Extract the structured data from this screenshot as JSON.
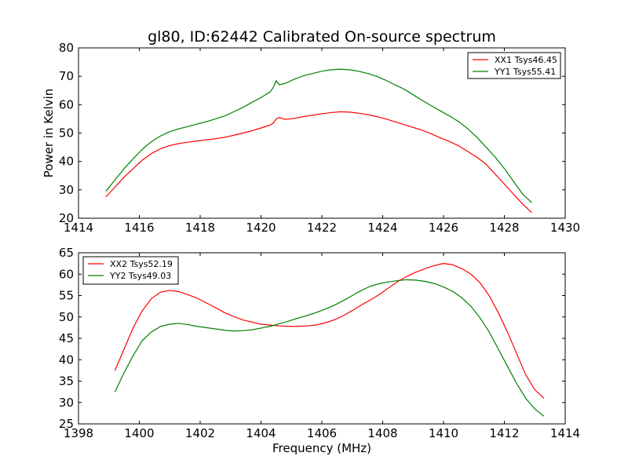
{
  "title": "gl80, ID:62442 Calibrated On-source spectrum",
  "chart_data": [
    {
      "type": "line",
      "ylabel": "Power in Kelvin",
      "xlabel": "",
      "xlim": [
        1414,
        1430
      ],
      "ylim": [
        20,
        80
      ],
      "xticks": [
        1414,
        1416,
        1418,
        1420,
        1422,
        1424,
        1426,
        1428,
        1430
      ],
      "yticks": [
        20,
        30,
        40,
        50,
        60,
        70,
        80
      ],
      "legend_position": "top-right",
      "series": [
        {
          "name": "XX1 Tsys46.45",
          "color": "#ff0000",
          "x": [
            1414.9,
            1415.2,
            1415.5,
            1415.8,
            1416.1,
            1416.4,
            1416.7,
            1417.0,
            1417.3,
            1417.6,
            1417.9,
            1418.2,
            1418.5,
            1418.8,
            1419.1,
            1419.4,
            1419.7,
            1420.0,
            1420.3,
            1420.4,
            1420.5,
            1420.6,
            1420.8,
            1421.1,
            1421.4,
            1421.7,
            1422.0,
            1422.3,
            1422.6,
            1422.9,
            1423.2,
            1423.5,
            1423.8,
            1424.1,
            1424.4,
            1424.7,
            1425.0,
            1425.3,
            1425.6,
            1425.9,
            1426.2,
            1426.5,
            1426.8,
            1427.1,
            1427.4,
            1427.7,
            1428.0,
            1428.3,
            1428.6,
            1428.9
          ],
          "y": [
            27.5,
            31.0,
            34.5,
            37.5,
            40.5,
            42.8,
            44.5,
            45.6,
            46.3,
            46.8,
            47.2,
            47.6,
            48.0,
            48.5,
            49.2,
            50.0,
            50.8,
            51.8,
            52.8,
            53.5,
            55.0,
            55.5,
            54.8,
            55.2,
            55.8,
            56.3,
            56.8,
            57.2,
            57.5,
            57.4,
            57.0,
            56.5,
            55.8,
            55.0,
            54.0,
            53.0,
            52.0,
            51.0,
            49.7,
            48.3,
            47.0,
            45.5,
            43.5,
            41.5,
            39.0,
            35.5,
            32.0,
            28.5,
            25.0,
            22.0
          ]
        },
        {
          "name": "YY1 Tsys55.41",
          "color": "#008000",
          "x": [
            1414.9,
            1415.2,
            1415.5,
            1415.8,
            1416.1,
            1416.4,
            1416.7,
            1417.0,
            1417.3,
            1417.6,
            1417.9,
            1418.2,
            1418.5,
            1418.8,
            1419.1,
            1419.4,
            1419.7,
            1420.0,
            1420.3,
            1420.4,
            1420.5,
            1420.6,
            1420.8,
            1421.1,
            1421.4,
            1421.7,
            1422.0,
            1422.3,
            1422.6,
            1422.9,
            1423.2,
            1423.5,
            1423.8,
            1424.1,
            1424.4,
            1424.7,
            1425.0,
            1425.3,
            1425.6,
            1425.9,
            1426.2,
            1426.5,
            1426.8,
            1427.1,
            1427.4,
            1427.7,
            1428.0,
            1428.3,
            1428.6,
            1428.9
          ],
          "y": [
            29.5,
            33.5,
            37.5,
            41.0,
            44.3,
            47.0,
            49.0,
            50.5,
            51.5,
            52.3,
            53.2,
            54.0,
            55.0,
            56.0,
            57.5,
            59.0,
            60.8,
            62.5,
            64.5,
            66.0,
            68.5,
            67.0,
            67.5,
            69.0,
            70.2,
            71.0,
            71.8,
            72.3,
            72.5,
            72.3,
            71.8,
            71.0,
            70.0,
            68.6,
            67.0,
            65.5,
            63.5,
            61.5,
            59.6,
            57.8,
            56.0,
            54.0,
            51.5,
            48.5,
            45.0,
            41.5,
            37.5,
            33.0,
            28.5,
            25.5
          ]
        }
      ]
    },
    {
      "type": "line",
      "ylabel": "",
      "xlabel": "Frequency (MHz)",
      "xlim": [
        1398,
        1414
      ],
      "ylim": [
        25,
        65
      ],
      "xticks": [
        1398,
        1400,
        1402,
        1404,
        1406,
        1408,
        1410,
        1412,
        1414
      ],
      "yticks": [
        25,
        30,
        35,
        40,
        45,
        50,
        55,
        60,
        65
      ],
      "legend_position": "top-left",
      "series": [
        {
          "name": "XX2 Tsys52.19",
          "color": "#ff0000",
          "x": [
            1399.2,
            1399.5,
            1399.8,
            1400.1,
            1400.4,
            1400.7,
            1401.0,
            1401.3,
            1401.6,
            1401.9,
            1402.2,
            1402.5,
            1402.8,
            1403.1,
            1403.4,
            1403.7,
            1404.0,
            1404.3,
            1404.6,
            1404.9,
            1405.2,
            1405.5,
            1405.8,
            1406.1,
            1406.4,
            1406.7,
            1407.0,
            1407.3,
            1407.6,
            1407.9,
            1408.2,
            1408.5,
            1408.8,
            1409.1,
            1409.4,
            1409.7,
            1410.0,
            1410.3,
            1410.6,
            1410.9,
            1411.2,
            1411.5,
            1411.8,
            1412.1,
            1412.4,
            1412.7,
            1413.0,
            1413.3
          ],
          "y": [
            37.5,
            42.5,
            47.5,
            51.5,
            54.3,
            55.8,
            56.2,
            55.9,
            55.2,
            54.4,
            53.3,
            52.2,
            51.0,
            50.1,
            49.3,
            48.8,
            48.3,
            48.1,
            47.9,
            47.8,
            47.8,
            47.9,
            48.1,
            48.6,
            49.3,
            50.3,
            51.5,
            52.8,
            54.0,
            55.3,
            56.8,
            58.3,
            59.5,
            60.5,
            61.3,
            62.0,
            62.5,
            62.2,
            61.3,
            60.0,
            58.0,
            55.0,
            51.0,
            46.5,
            41.5,
            36.5,
            33.0,
            31.0
          ]
        },
        {
          "name": "YY2 Tsys49.03",
          "color": "#008000",
          "x": [
            1399.2,
            1399.5,
            1399.8,
            1400.1,
            1400.4,
            1400.7,
            1401.0,
            1401.3,
            1401.6,
            1401.9,
            1402.2,
            1402.5,
            1402.8,
            1403.1,
            1403.4,
            1403.7,
            1404.0,
            1404.3,
            1404.6,
            1404.9,
            1405.2,
            1405.5,
            1405.8,
            1406.1,
            1406.4,
            1406.7,
            1407.0,
            1407.3,
            1407.6,
            1407.9,
            1408.2,
            1408.5,
            1408.8,
            1409.1,
            1409.4,
            1409.7,
            1410.0,
            1410.3,
            1410.6,
            1410.9,
            1411.2,
            1411.5,
            1411.8,
            1412.1,
            1412.4,
            1412.7,
            1413.0,
            1413.3
          ],
          "y": [
            32.5,
            37.0,
            41.0,
            44.5,
            46.5,
            47.8,
            48.3,
            48.5,
            48.2,
            47.8,
            47.5,
            47.2,
            46.9,
            46.7,
            46.8,
            47.0,
            47.4,
            47.8,
            48.4,
            49.0,
            49.7,
            50.3,
            51.0,
            51.8,
            52.7,
            53.8,
            55.0,
            56.2,
            57.2,
            57.8,
            58.2,
            58.5,
            58.7,
            58.6,
            58.3,
            57.8,
            57.0,
            56.0,
            54.5,
            52.5,
            49.8,
            46.5,
            42.5,
            38.5,
            34.5,
            31.0,
            28.5,
            26.8
          ]
        }
      ]
    }
  ]
}
